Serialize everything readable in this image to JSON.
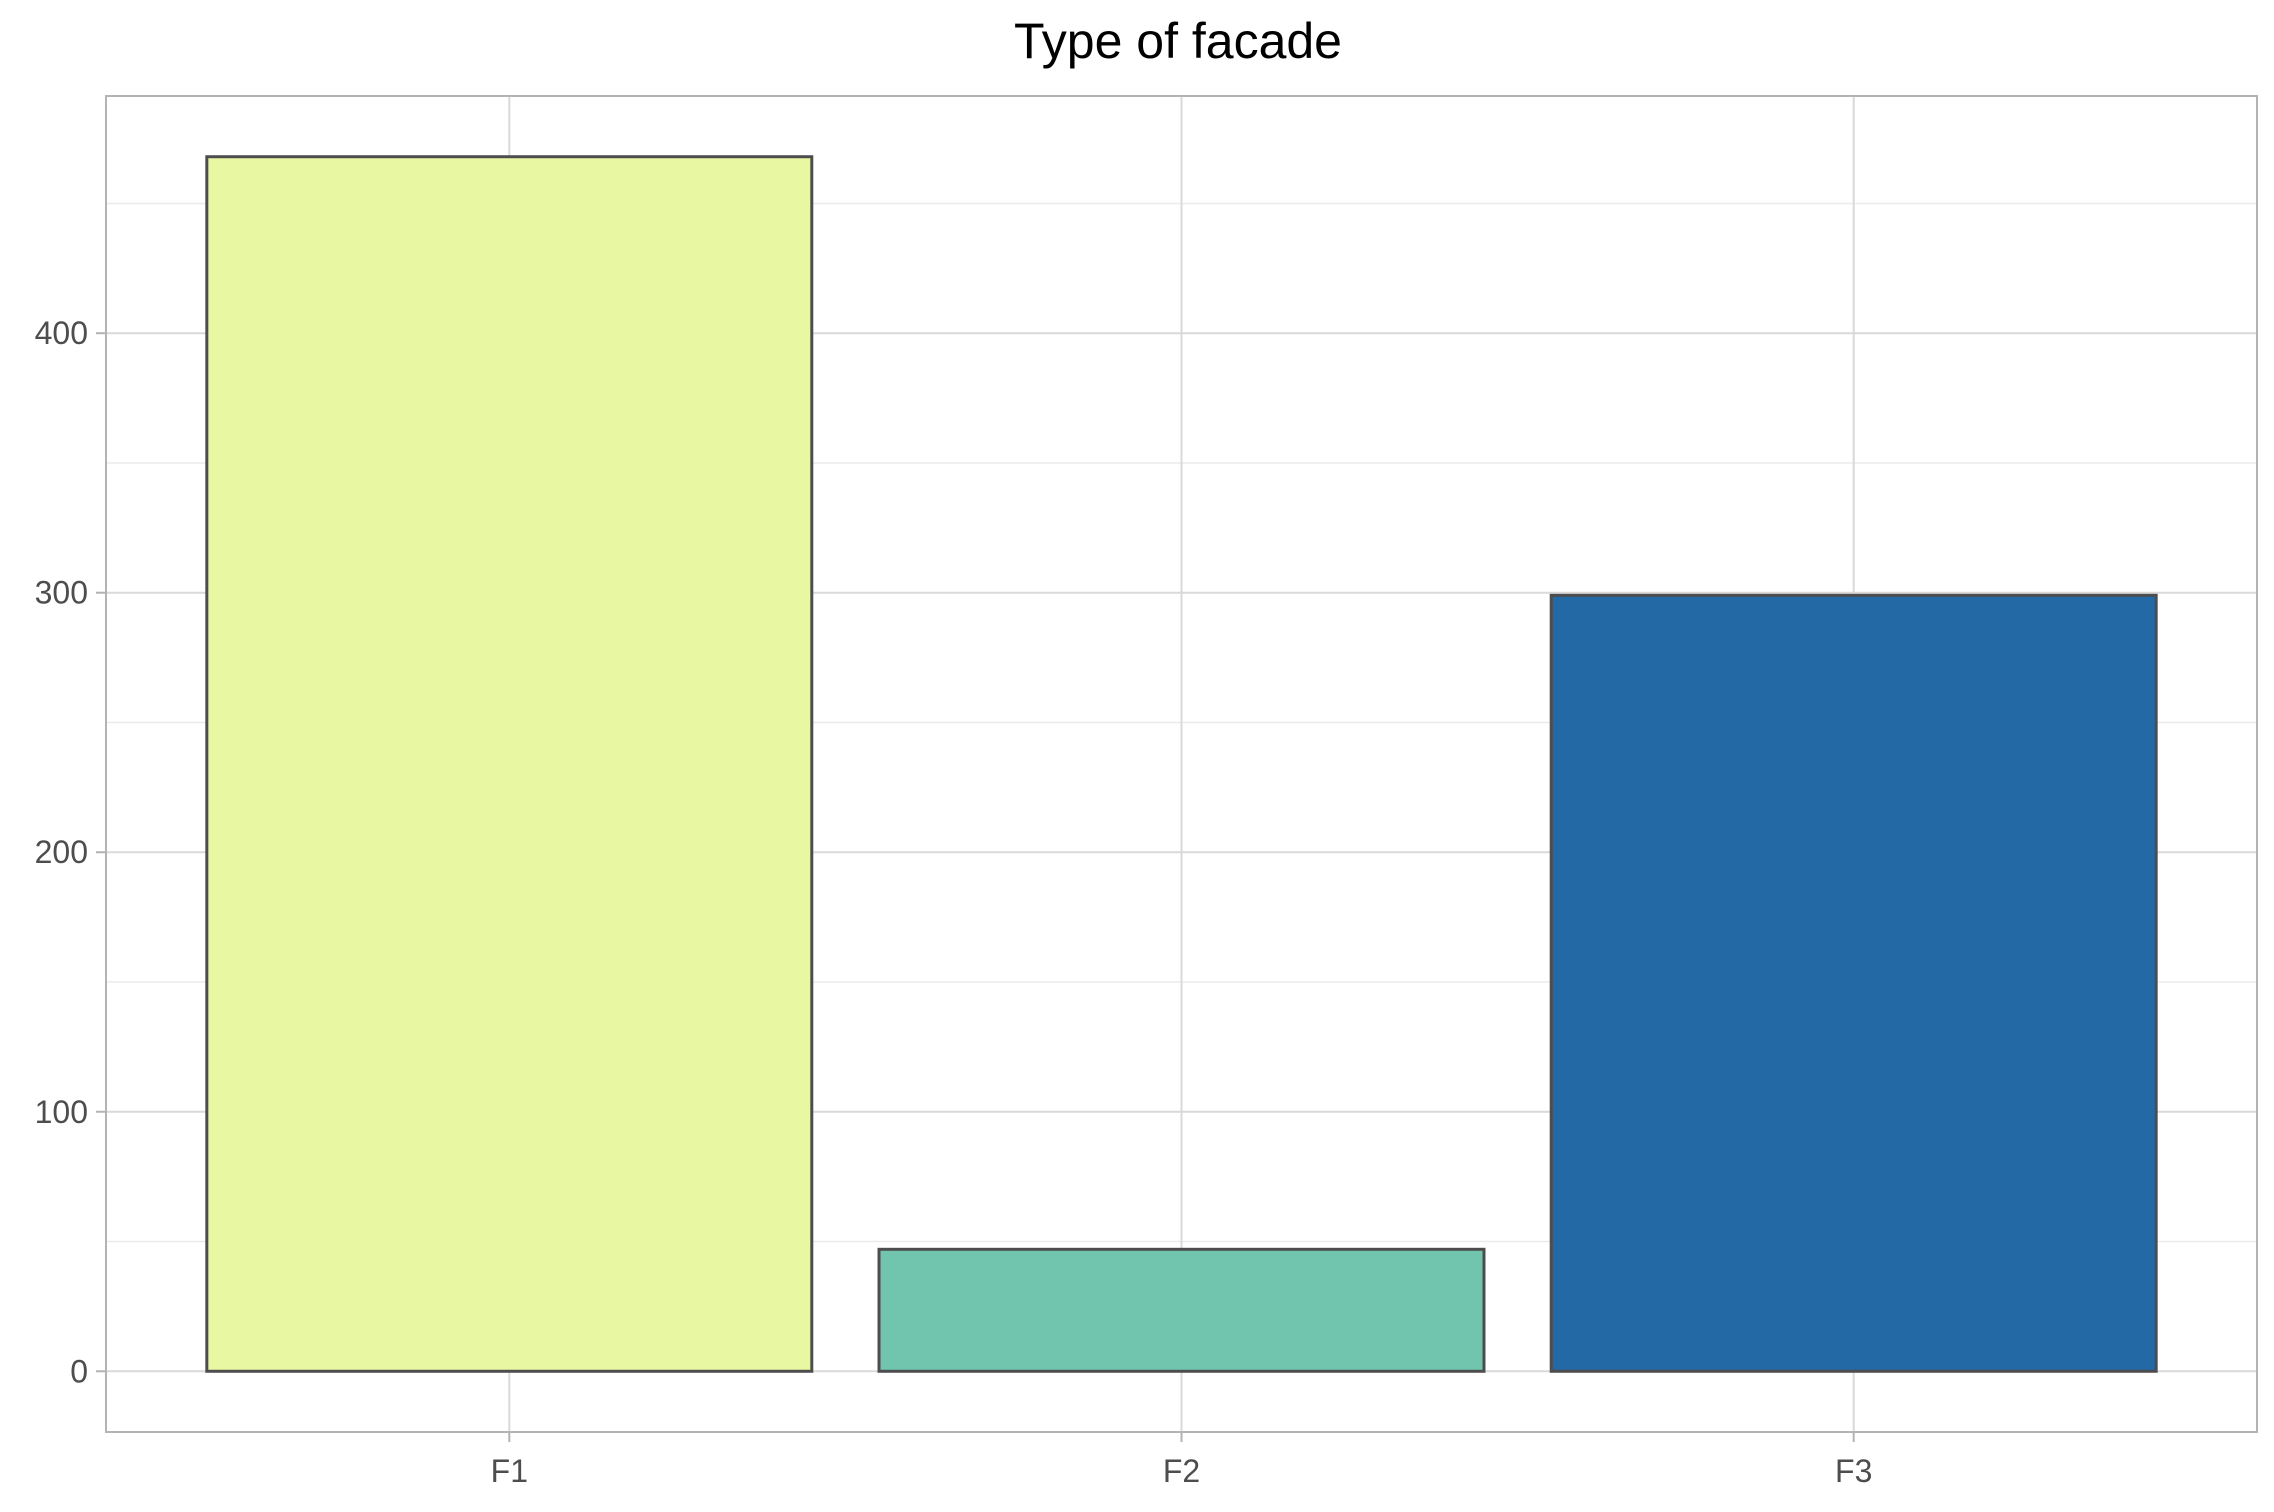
{
  "chart_data": {
    "type": "bar",
    "title": "Type of facade",
    "xlabel": "",
    "ylabel": "",
    "categories": [
      "F1",
      "F2",
      "F3"
    ],
    "values": [
      468,
      47,
      299
    ],
    "colors": [
      "#E8F8A2",
      "#71C5AE",
      "#2369A6"
    ],
    "bar_outline_color": "#4d4d4d",
    "ylim": [
      -23.4,
      491.4
    ],
    "y_ticks": [
      0,
      100,
      200,
      300,
      400
    ],
    "y_tick_labels": [
      "0",
      "100",
      "200",
      "300",
      "400"
    ],
    "grid": true,
    "legend": "none"
  }
}
